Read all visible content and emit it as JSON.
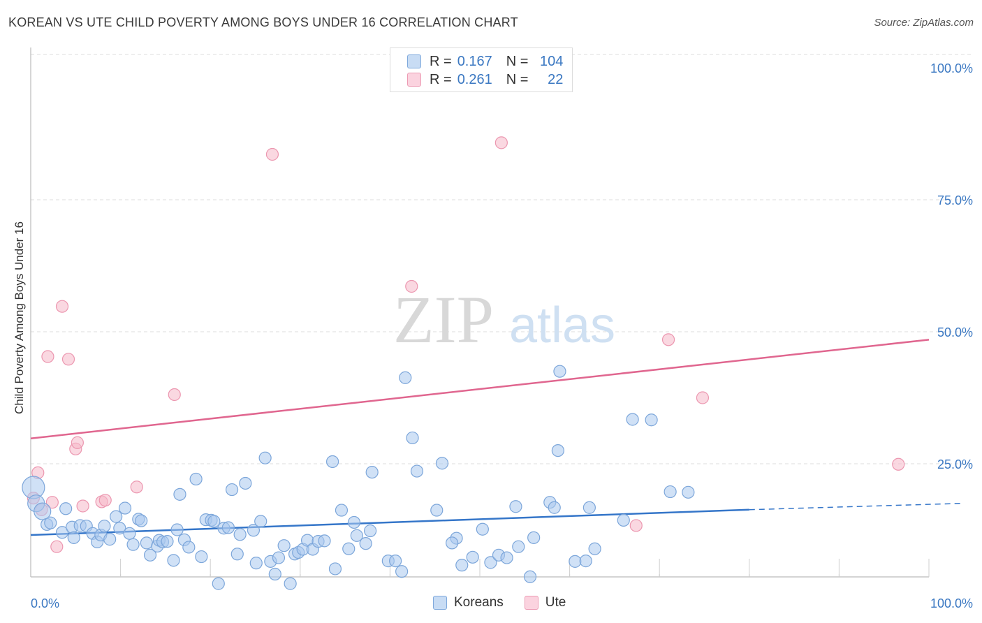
{
  "header": {
    "title": "KOREAN VS UTE CHILD POVERTY AMONG BOYS UNDER 16 CORRELATION CHART",
    "source": "Source: ZipAtlas.com"
  },
  "watermark": {
    "zip": "ZIP",
    "atlas": "atlas"
  },
  "legend_top": {
    "rows": [
      {
        "r_label": "R =",
        "r_value": "0.167",
        "n_label": "N =",
        "n_value": "104",
        "color": "#a9c8ee"
      },
      {
        "r_label": "R =",
        "r_value": "0.261",
        "n_label": "N =",
        "n_value": "22",
        "color": "#f5b8c9"
      }
    ]
  },
  "legend_bottom": {
    "items": [
      {
        "label": "Koreans",
        "color": "#a9c8ee"
      },
      {
        "label": "Ute",
        "color": "#f5b8c9"
      }
    ]
  },
  "colors": {
    "blue": "#3576c9",
    "blue_fill": "#a9c8ee",
    "pink": "#e0668f",
    "pink_fill": "#f5b8c9",
    "tick_text": "#3b78c2"
  },
  "chart_data": {
    "type": "scatter",
    "title": "KOREAN VS UTE CHILD POVERTY AMONG BOYS UNDER 16 CORRELATION CHART",
    "xlabel": "",
    "ylabel": "Child Poverty Among Boys Under 16",
    "xlim": [
      0,
      100
    ],
    "ylim": [
      0,
      100
    ],
    "x_tick_labels": [
      "0.0%",
      "100.0%"
    ],
    "y_tick_labels": [
      "100.0%",
      "75.0%",
      "50.0%",
      "25.0%"
    ],
    "y_ticks": [
      100,
      75,
      50,
      25
    ],
    "grid": true,
    "legend_position": "top-center",
    "series": [
      {
        "name": "Koreans",
        "r": 0.167,
        "n": 104,
        "trend": {
          "x0": 0,
          "y0": 11.5,
          "x1": 80,
          "y1": 16.3,
          "dashed_to_x": 100,
          "dashed_to_y": 17.5
        },
        "points": [
          [
            0.3,
            20.5,
            3
          ],
          [
            0.6,
            17.5,
            2
          ],
          [
            1.3,
            16.0,
            2
          ],
          [
            1.8,
            13.5,
            1
          ],
          [
            2.2,
            13.8,
            1
          ],
          [
            3.5,
            12.0,
            1
          ],
          [
            3.9,
            16.5,
            1
          ],
          [
            4.6,
            13.0,
            1
          ],
          [
            4.8,
            11.0,
            1
          ],
          [
            5.5,
            13.3,
            1
          ],
          [
            6.2,
            13.2,
            1
          ],
          [
            6.9,
            11.8,
            1
          ],
          [
            7.4,
            10.2,
            1
          ],
          [
            7.8,
            11.5,
            1
          ],
          [
            8.2,
            13.2,
            1
          ],
          [
            8.8,
            10.7,
            1
          ],
          [
            9.5,
            15.0,
            1
          ],
          [
            9.9,
            12.8,
            1
          ],
          [
            10.5,
            16.6,
            1
          ],
          [
            11.0,
            11.8,
            1
          ],
          [
            11.4,
            9.7,
            1
          ],
          [
            12.0,
            14.5,
            1
          ],
          [
            12.3,
            14.2,
            1
          ],
          [
            12.9,
            10.0,
            1
          ],
          [
            13.3,
            7.7,
            1
          ],
          [
            14.1,
            9.4,
            1
          ],
          [
            14.3,
            10.5,
            1
          ],
          [
            14.7,
            10.2,
            1
          ],
          [
            15.2,
            10.3,
            1
          ],
          [
            15.9,
            6.7,
            1
          ],
          [
            16.3,
            12.5,
            1
          ],
          [
            16.6,
            19.2,
            1
          ],
          [
            17.1,
            10.6,
            1
          ],
          [
            17.6,
            9.2,
            1
          ],
          [
            18.4,
            22.1,
            1
          ],
          [
            19.0,
            7.4,
            1
          ],
          [
            19.5,
            14.4,
            1
          ],
          [
            20.1,
            14.3,
            1
          ],
          [
            20.4,
            14.1,
            1
          ],
          [
            20.9,
            2.3,
            1
          ],
          [
            21.5,
            12.8,
            1
          ],
          [
            22.0,
            12.9,
            1
          ],
          [
            22.4,
            20.1,
            1
          ],
          [
            23.0,
            7.9,
            1
          ],
          [
            23.3,
            11.6,
            1
          ],
          [
            23.9,
            21.3,
            1
          ],
          [
            24.8,
            12.4,
            1
          ],
          [
            25.1,
            6.2,
            1
          ],
          [
            25.6,
            14.1,
            1
          ],
          [
            26.1,
            26.1,
            1
          ],
          [
            26.7,
            6.5,
            1
          ],
          [
            27.2,
            4.1,
            1
          ],
          [
            27.6,
            7.2,
            1
          ],
          [
            28.2,
            9.5,
            1
          ],
          [
            28.9,
            2.3,
            1
          ],
          [
            29.4,
            7.9,
            1
          ],
          [
            29.8,
            8.2,
            1
          ],
          [
            30.3,
            8.8,
            1
          ],
          [
            30.8,
            10.5,
            1
          ],
          [
            31.4,
            8.8,
            1
          ],
          [
            32.0,
            10.3,
            1
          ],
          [
            32.7,
            10.4,
            1
          ],
          [
            33.6,
            25.4,
            1
          ],
          [
            33.9,
            5.1,
            1
          ],
          [
            34.6,
            16.2,
            1
          ],
          [
            35.4,
            8.9,
            1
          ],
          [
            36.0,
            13.9,
            1
          ],
          [
            36.3,
            11.4,
            1
          ],
          [
            37.3,
            9.9,
            1
          ],
          [
            37.8,
            12.3,
            1
          ],
          [
            38.0,
            23.4,
            1
          ],
          [
            39.8,
            6.6,
            1
          ],
          [
            41.3,
            4.6,
            1
          ],
          [
            41.7,
            41.3,
            1
          ],
          [
            42.5,
            29.9,
            1
          ],
          [
            43.0,
            23.6,
            1
          ],
          [
            45.2,
            16.2,
            1
          ],
          [
            45.8,
            25.1,
            1
          ],
          [
            47.4,
            10.9,
            1
          ],
          [
            48.0,
            5.8,
            1
          ],
          [
            49.2,
            7.3,
            1
          ],
          [
            50.3,
            12.6,
            1
          ],
          [
            51.2,
            6.3,
            1
          ],
          [
            52.1,
            7.7,
            1
          ],
          [
            53.0,
            7.2,
            1
          ],
          [
            54.0,
            16.9,
            1
          ],
          [
            54.3,
            9.3,
            1
          ],
          [
            55.6,
            3.6,
            1
          ],
          [
            56.0,
            11.0,
            1
          ],
          [
            57.8,
            17.7,
            1
          ],
          [
            58.3,
            16.7,
            1
          ],
          [
            58.7,
            27.5,
            1
          ],
          [
            58.9,
            42.5,
            1
          ],
          [
            60.6,
            6.5,
            1
          ],
          [
            61.8,
            6.6,
            1
          ],
          [
            62.2,
            16.7,
            1
          ],
          [
            62.8,
            8.9,
            1
          ],
          [
            66.0,
            14.3,
            1
          ],
          [
            67.0,
            33.4,
            1
          ],
          [
            69.1,
            33.3,
            1
          ],
          [
            71.2,
            19.7,
            1
          ],
          [
            73.2,
            19.6,
            1
          ],
          [
            40.6,
            6.6,
            1
          ],
          [
            46.9,
            10.0,
            1
          ]
        ]
      },
      {
        "name": "Ute",
        "r": 0.261,
        "n": 22,
        "trend": {
          "x0": 0,
          "y0": 29.8,
          "x1": 100,
          "y1": 48.5
        },
        "points": [
          [
            0.3,
            18.5,
            1
          ],
          [
            0.8,
            23.3,
            1
          ],
          [
            1.2,
            16.3,
            1
          ],
          [
            1.9,
            45.3,
            1
          ],
          [
            2.4,
            17.7,
            1
          ],
          [
            2.9,
            9.3,
            1
          ],
          [
            3.5,
            54.8,
            1
          ],
          [
            4.2,
            44.8,
            1
          ],
          [
            5.0,
            27.8,
            1
          ],
          [
            5.2,
            29.0,
            1
          ],
          [
            5.8,
            17.0,
            1
          ],
          [
            7.9,
            17.8,
            1
          ],
          [
            8.3,
            18.1,
            1
          ],
          [
            11.8,
            20.6,
            1
          ],
          [
            16.0,
            38.1,
            1
          ],
          [
            26.9,
            83.6,
            1
          ],
          [
            42.4,
            58.6,
            1
          ],
          [
            52.4,
            85.8,
            1
          ],
          [
            67.4,
            13.3,
            1
          ],
          [
            71.0,
            48.5,
            1
          ],
          [
            74.8,
            37.5,
            1
          ],
          [
            96.6,
            24.9,
            1
          ]
        ]
      }
    ]
  }
}
